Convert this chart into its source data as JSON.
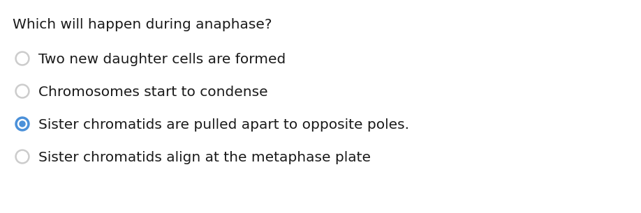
{
  "title": "Which will happen during anaphase?",
  "options": [
    "Two new daughter cells are formed",
    "Chromosomes start to condense",
    "Sister chromatids are pulled apart to opposite poles.",
    "Sister chromatids align at the metaphase plate"
  ],
  "correct_index": 2,
  "background_color": "#ffffff",
  "text_color": "#1a1a1a",
  "radio_empty_color": "#cccccc",
  "radio_filled_color": "#4a90d9",
  "title_fontsize": 14.5,
  "option_fontsize": 14.5
}
